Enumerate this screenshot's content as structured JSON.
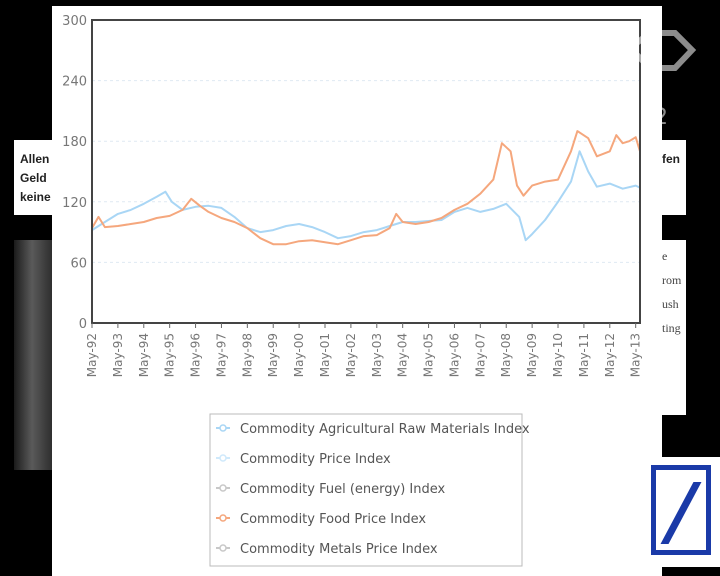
{
  "background": {
    "left_text_lines": [
      "Allen",
      "Geld",
      "keine"
    ],
    "right_text_top": "fen",
    "right_text_lines": [
      "e",
      "rom",
      "ush",
      "",
      "ting"
    ],
    "bug_text": "2"
  },
  "chart_data": {
    "type": "line",
    "title": "",
    "xlabel": "",
    "ylabel": "",
    "ylim": [
      0,
      300
    ],
    "yticks": [
      "0",
      "60",
      "120",
      "180",
      "240",
      "300"
    ],
    "grid": true,
    "legend_position": "bottom",
    "x_start": "May-92",
    "x_end": "Jul-13",
    "xtick_labels": [
      "May-92",
      "May-93",
      "May-94",
      "May-95",
      "May-96",
      "May-97",
      "May-98",
      "May-99",
      "May-00",
      "May-01",
      "May-02",
      "May-03",
      "May-04",
      "May-05",
      "May-06",
      "May-07",
      "May-08",
      "May-09",
      "May-10",
      "May-11",
      "May-12",
      "May-13"
    ],
    "series": [
      {
        "name": "Commodity Agricultural Raw Materials Index",
        "color": "#a9d6f5",
        "points": [
          [
            "May-92",
            92
          ],
          [
            "Nov-92",
            100
          ],
          [
            "May-93",
            108
          ],
          [
            "Nov-93",
            112
          ],
          [
            "May-94",
            118
          ],
          [
            "Nov-94",
            125
          ],
          [
            "Mar-95",
            130
          ],
          [
            "Jun-95",
            120
          ],
          [
            "Nov-95",
            112
          ],
          [
            "May-96",
            115
          ],
          [
            "Nov-96",
            116
          ],
          [
            "May-97",
            114
          ],
          [
            "Nov-97",
            105
          ],
          [
            "May-98",
            94
          ],
          [
            "Nov-98",
            90
          ],
          [
            "May-99",
            92
          ],
          [
            "Nov-99",
            96
          ],
          [
            "May-00",
            98
          ],
          [
            "Nov-00",
            95
          ],
          [
            "May-01",
            90
          ],
          [
            "Nov-01",
            84
          ],
          [
            "May-02",
            86
          ],
          [
            "Nov-02",
            90
          ],
          [
            "May-03",
            92
          ],
          [
            "Nov-03",
            96
          ],
          [
            "May-04",
            100
          ],
          [
            "Nov-04",
            100
          ],
          [
            "May-05",
            101
          ],
          [
            "Nov-05",
            102
          ],
          [
            "May-06",
            110
          ],
          [
            "Nov-06",
            114
          ],
          [
            "May-07",
            110
          ],
          [
            "Nov-07",
            113
          ],
          [
            "May-08",
            118
          ],
          [
            "Nov-08",
            105
          ],
          [
            "Feb-09",
            82
          ],
          [
            "May-09",
            88
          ],
          [
            "Nov-09",
            102
          ],
          [
            "May-10",
            120
          ],
          [
            "Nov-10",
            140
          ],
          [
            "Mar-11",
            170
          ],
          [
            "Jul-11",
            150
          ],
          [
            "Nov-11",
            135
          ],
          [
            "May-12",
            138
          ],
          [
            "Nov-12",
            133
          ],
          [
            "May-13",
            136
          ],
          [
            "Jul-13",
            134
          ]
        ]
      },
      {
        "name": "Commodity Price Index",
        "color": "#cfe9fb",
        "points": []
      },
      {
        "name": "Commodity Fuel (energy) Index",
        "color": "#c8c8c8",
        "points": []
      },
      {
        "name": "Commodity Food Price Index",
        "color": "#f5a77d",
        "points": [
          [
            "May-92",
            94
          ],
          [
            "Aug-92",
            105
          ],
          [
            "Nov-92",
            95
          ],
          [
            "May-93",
            96
          ],
          [
            "Nov-93",
            98
          ],
          [
            "May-94",
            100
          ],
          [
            "Nov-94",
            104
          ],
          [
            "May-95",
            106
          ],
          [
            "Nov-95",
            112
          ],
          [
            "Mar-96",
            123
          ],
          [
            "Jul-96",
            116
          ],
          [
            "Nov-96",
            110
          ],
          [
            "May-97",
            104
          ],
          [
            "Nov-97",
            100
          ],
          [
            "May-98",
            94
          ],
          [
            "Nov-98",
            84
          ],
          [
            "May-99",
            78
          ],
          [
            "Nov-99",
            78
          ],
          [
            "May-00",
            81
          ],
          [
            "Nov-00",
            82
          ],
          [
            "May-01",
            80
          ],
          [
            "Nov-01",
            78
          ],
          [
            "May-02",
            82
          ],
          [
            "Nov-02",
            86
          ],
          [
            "May-03",
            87
          ],
          [
            "Nov-03",
            94
          ],
          [
            "Feb-04",
            108
          ],
          [
            "May-04",
            100
          ],
          [
            "Nov-04",
            98
          ],
          [
            "May-05",
            100
          ],
          [
            "Nov-05",
            104
          ],
          [
            "May-06",
            112
          ],
          [
            "Nov-06",
            118
          ],
          [
            "May-07",
            128
          ],
          [
            "Nov-07",
            142
          ],
          [
            "Mar-08",
            178
          ],
          [
            "Jul-08",
            170
          ],
          [
            "Oct-08",
            136
          ],
          [
            "Jan-09",
            126
          ],
          [
            "May-09",
            136
          ],
          [
            "Nov-09",
            140
          ],
          [
            "May-10",
            142
          ],
          [
            "Nov-10",
            170
          ],
          [
            "Feb-11",
            190
          ],
          [
            "Jul-11",
            183
          ],
          [
            "Nov-11",
            165
          ],
          [
            "May-12",
            170
          ],
          [
            "Aug-12",
            186
          ],
          [
            "Nov-12",
            178
          ],
          [
            "Feb-13",
            180
          ],
          [
            "May-13",
            184
          ],
          [
            "Jul-13",
            170
          ]
        ]
      },
      {
        "name": "Commodity Metals Price Index",
        "color": "#c8c8c8",
        "points": []
      }
    ]
  }
}
